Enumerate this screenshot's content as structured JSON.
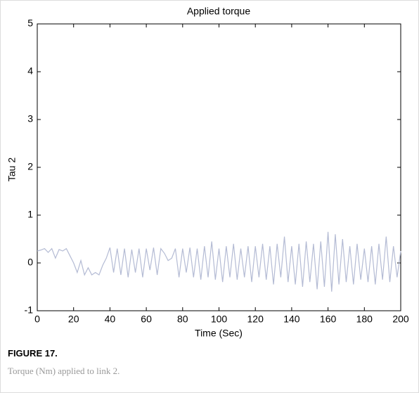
{
  "chart_data": {
    "type": "line",
    "title": "Applied torque",
    "xlabel": "Time (Sec)",
    "ylabel": "Tau 2",
    "x": [
      0,
      2,
      4,
      6,
      8,
      10,
      12,
      14,
      16,
      18,
      20,
      22,
      24,
      26,
      28,
      30,
      32,
      34,
      36,
      38,
      40,
      42,
      44,
      46,
      48,
      50,
      52,
      54,
      56,
      58,
      60,
      62,
      64,
      66,
      68,
      70,
      72,
      74,
      76,
      78,
      80,
      82,
      84,
      86,
      88,
      90,
      92,
      94,
      96,
      98,
      100,
      102,
      104,
      106,
      108,
      110,
      112,
      114,
      116,
      118,
      120,
      122,
      124,
      126,
      128,
      130,
      132,
      134,
      136,
      138,
      140,
      142,
      144,
      146,
      148,
      150,
      152,
      154,
      156,
      158,
      160,
      162,
      164,
      166,
      168,
      170,
      172,
      174,
      176,
      178,
      180,
      182,
      184,
      186,
      188,
      190,
      192,
      194,
      196,
      198,
      200
    ],
    "series": [
      {
        "name": "Tau 2",
        "color": "#b4bbd4",
        "values": [
          0.25,
          0.27,
          0.3,
          0.22,
          0.3,
          0.1,
          0.28,
          0.25,
          0.3,
          0.15,
          0.0,
          -0.2,
          0.05,
          -0.25,
          -0.1,
          -0.25,
          -0.2,
          -0.25,
          -0.05,
          0.1,
          0.32,
          -0.2,
          0.3,
          -0.25,
          0.3,
          -0.3,
          0.28,
          -0.2,
          0.3,
          -0.3,
          0.3,
          -0.15,
          0.32,
          -0.25,
          0.3,
          0.2,
          0.05,
          0.1,
          0.3,
          -0.3,
          0.3,
          -0.2,
          0.32,
          -0.3,
          0.3,
          -0.35,
          0.35,
          -0.3,
          0.45,
          -0.35,
          0.3,
          -0.4,
          0.35,
          -0.3,
          0.4,
          -0.35,
          0.3,
          -0.3,
          0.35,
          -0.4,
          0.35,
          -0.3,
          0.4,
          -0.35,
          0.35,
          -0.45,
          0.4,
          -0.3,
          0.55,
          -0.4,
          0.35,
          -0.45,
          0.4,
          -0.5,
          0.45,
          -0.4,
          0.4,
          -0.55,
          0.45,
          -0.5,
          0.65,
          -0.6,
          0.6,
          -0.45,
          0.5,
          -0.4,
          0.35,
          -0.45,
          0.4,
          -0.35,
          0.3,
          -0.4,
          0.35,
          -0.45,
          0.4,
          -0.35,
          0.55,
          -0.4,
          0.35,
          -0.3,
          0.25
        ]
      }
    ],
    "xlim": [
      0,
      200
    ],
    "xticks": [
      0,
      20,
      40,
      60,
      80,
      100,
      120,
      140,
      160,
      180,
      200
    ],
    "ylim": [
      -1,
      5
    ],
    "yticks": [
      -1,
      0,
      1,
      2,
      3,
      4,
      5
    ]
  },
  "figure": {
    "label": "FIGURE 17.",
    "caption": "Torque (Nm) applied to link 2."
  }
}
